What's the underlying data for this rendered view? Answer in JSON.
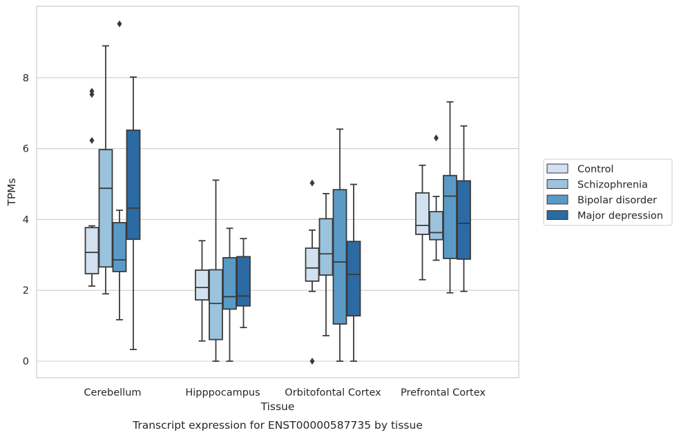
{
  "chart_data": {
    "type": "boxplot",
    "title": "",
    "caption": "Transcript expression for ENST00000587735 by tissue",
    "xlabel": "Tissue",
    "ylabel": "TPMs",
    "ylim": [
      -0.45,
      9.95
    ],
    "yticks": [
      0,
      2,
      4,
      6,
      8
    ],
    "grid": "horizontal",
    "legend_position": "right",
    "categories": [
      "Cerebellum",
      "Hipppocampus",
      "Orbitofontal Cortex",
      "Prefrontal Cortex"
    ],
    "series": [
      {
        "name": "Control",
        "color": "#d1e1f0",
        "boxes": [
          {
            "whislo": 2.12,
            "q1": 2.47,
            "med": 3.07,
            "q3": 3.77,
            "whishi": 3.82,
            "fliers": [
              6.23,
              7.53,
              7.62
            ]
          },
          {
            "whislo": 0.57,
            "q1": 1.73,
            "med": 2.08,
            "q3": 2.57,
            "whishi": 3.4,
            "fliers": []
          },
          {
            "whislo": 1.97,
            "q1": 2.26,
            "med": 2.63,
            "q3": 3.19,
            "whishi": 3.7,
            "fliers": [
              5.03,
              0.0
            ]
          },
          {
            "whislo": 2.3,
            "q1": 3.58,
            "med": 3.83,
            "q3": 4.75,
            "whishi": 5.53,
            "fliers": []
          }
        ]
      },
      {
        "name": "Schizophrenia",
        "color": "#9bc3dd",
        "boxes": [
          {
            "whislo": 1.9,
            "q1": 2.66,
            "med": 4.88,
            "q3": 5.97,
            "whishi": 8.9,
            "fliers": []
          },
          {
            "whislo": 0.0,
            "q1": 0.61,
            "med": 1.63,
            "q3": 2.58,
            "whishi": 5.11,
            "fliers": []
          },
          {
            "whislo": 0.72,
            "q1": 2.43,
            "med": 3.03,
            "q3": 4.02,
            "whishi": 4.73,
            "fliers": []
          },
          {
            "whislo": 2.85,
            "q1": 3.43,
            "med": 3.63,
            "q3": 4.22,
            "whishi": 4.65,
            "fliers": [
              6.3
            ]
          }
        ]
      },
      {
        "name": "Bipolar disorder",
        "color": "#5a9ac6",
        "boxes": [
          {
            "whislo": 1.17,
            "q1": 2.53,
            "med": 2.86,
            "q3": 3.91,
            "whishi": 4.26,
            "fliers": [
              9.52
            ]
          },
          {
            "whislo": 0.0,
            "q1": 1.47,
            "med": 1.82,
            "q3": 2.92,
            "whishi": 3.75,
            "fliers": []
          },
          {
            "whislo": 0.0,
            "q1": 1.05,
            "med": 2.8,
            "q3": 4.84,
            "whishi": 6.55,
            "fliers": []
          },
          {
            "whislo": 1.93,
            "q1": 2.9,
            "med": 4.66,
            "q3": 5.24,
            "whishi": 7.32,
            "fliers": []
          }
        ]
      },
      {
        "name": "Major depression",
        "color": "#2c6aa4",
        "boxes": [
          {
            "whislo": 0.33,
            "q1": 3.44,
            "med": 4.32,
            "q3": 6.52,
            "whishi": 8.02,
            "fliers": []
          },
          {
            "whislo": 0.95,
            "q1": 1.56,
            "med": 1.84,
            "q3": 2.95,
            "whishi": 3.46,
            "fliers": []
          },
          {
            "whislo": 0.0,
            "q1": 1.28,
            "med": 2.45,
            "q3": 3.38,
            "whishi": 4.99,
            "fliers": []
          },
          {
            "whislo": 1.97,
            "q1": 2.88,
            "med": 3.89,
            "q3": 5.09,
            "whishi": 6.64,
            "fliers": []
          }
        ]
      }
    ]
  }
}
